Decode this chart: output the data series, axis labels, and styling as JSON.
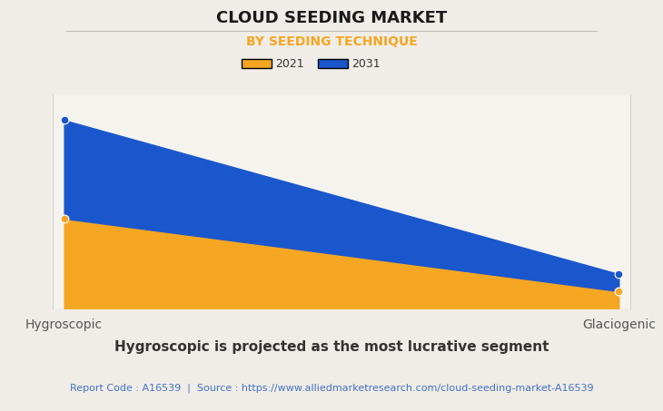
{
  "title": "CLOUD SEEDING MARKET",
  "subtitle": "BY SEEDING TECHNIQUE",
  "subtitle_color": "#F5A623",
  "categories": [
    "Hygroscopic",
    "Glaciogenic"
  ],
  "year_2021": [
    0.42,
    0.08
  ],
  "year_2031": [
    0.88,
    0.16
  ],
  "color_2021": "#F5A623",
  "color_2031": "#1A56CC",
  "legend_labels": [
    "2021",
    "2031"
  ],
  "footnote": "Hygroscopic is projected as the most lucrative segment",
  "source_text": "Report Code : A16539  |  Source : https://www.alliedmarketresearch.com/cloud-seeding-market-A16539",
  "source_color": "#4472C4",
  "bg_color": "#F0EDE8",
  "plot_bg_color": "#F5F3EE",
  "grid_color": "#D5D2CC",
  "title_fontsize": 13,
  "subtitle_fontsize": 10,
  "footnote_fontsize": 11,
  "source_fontsize": 8,
  "tick_fontsize": 10
}
